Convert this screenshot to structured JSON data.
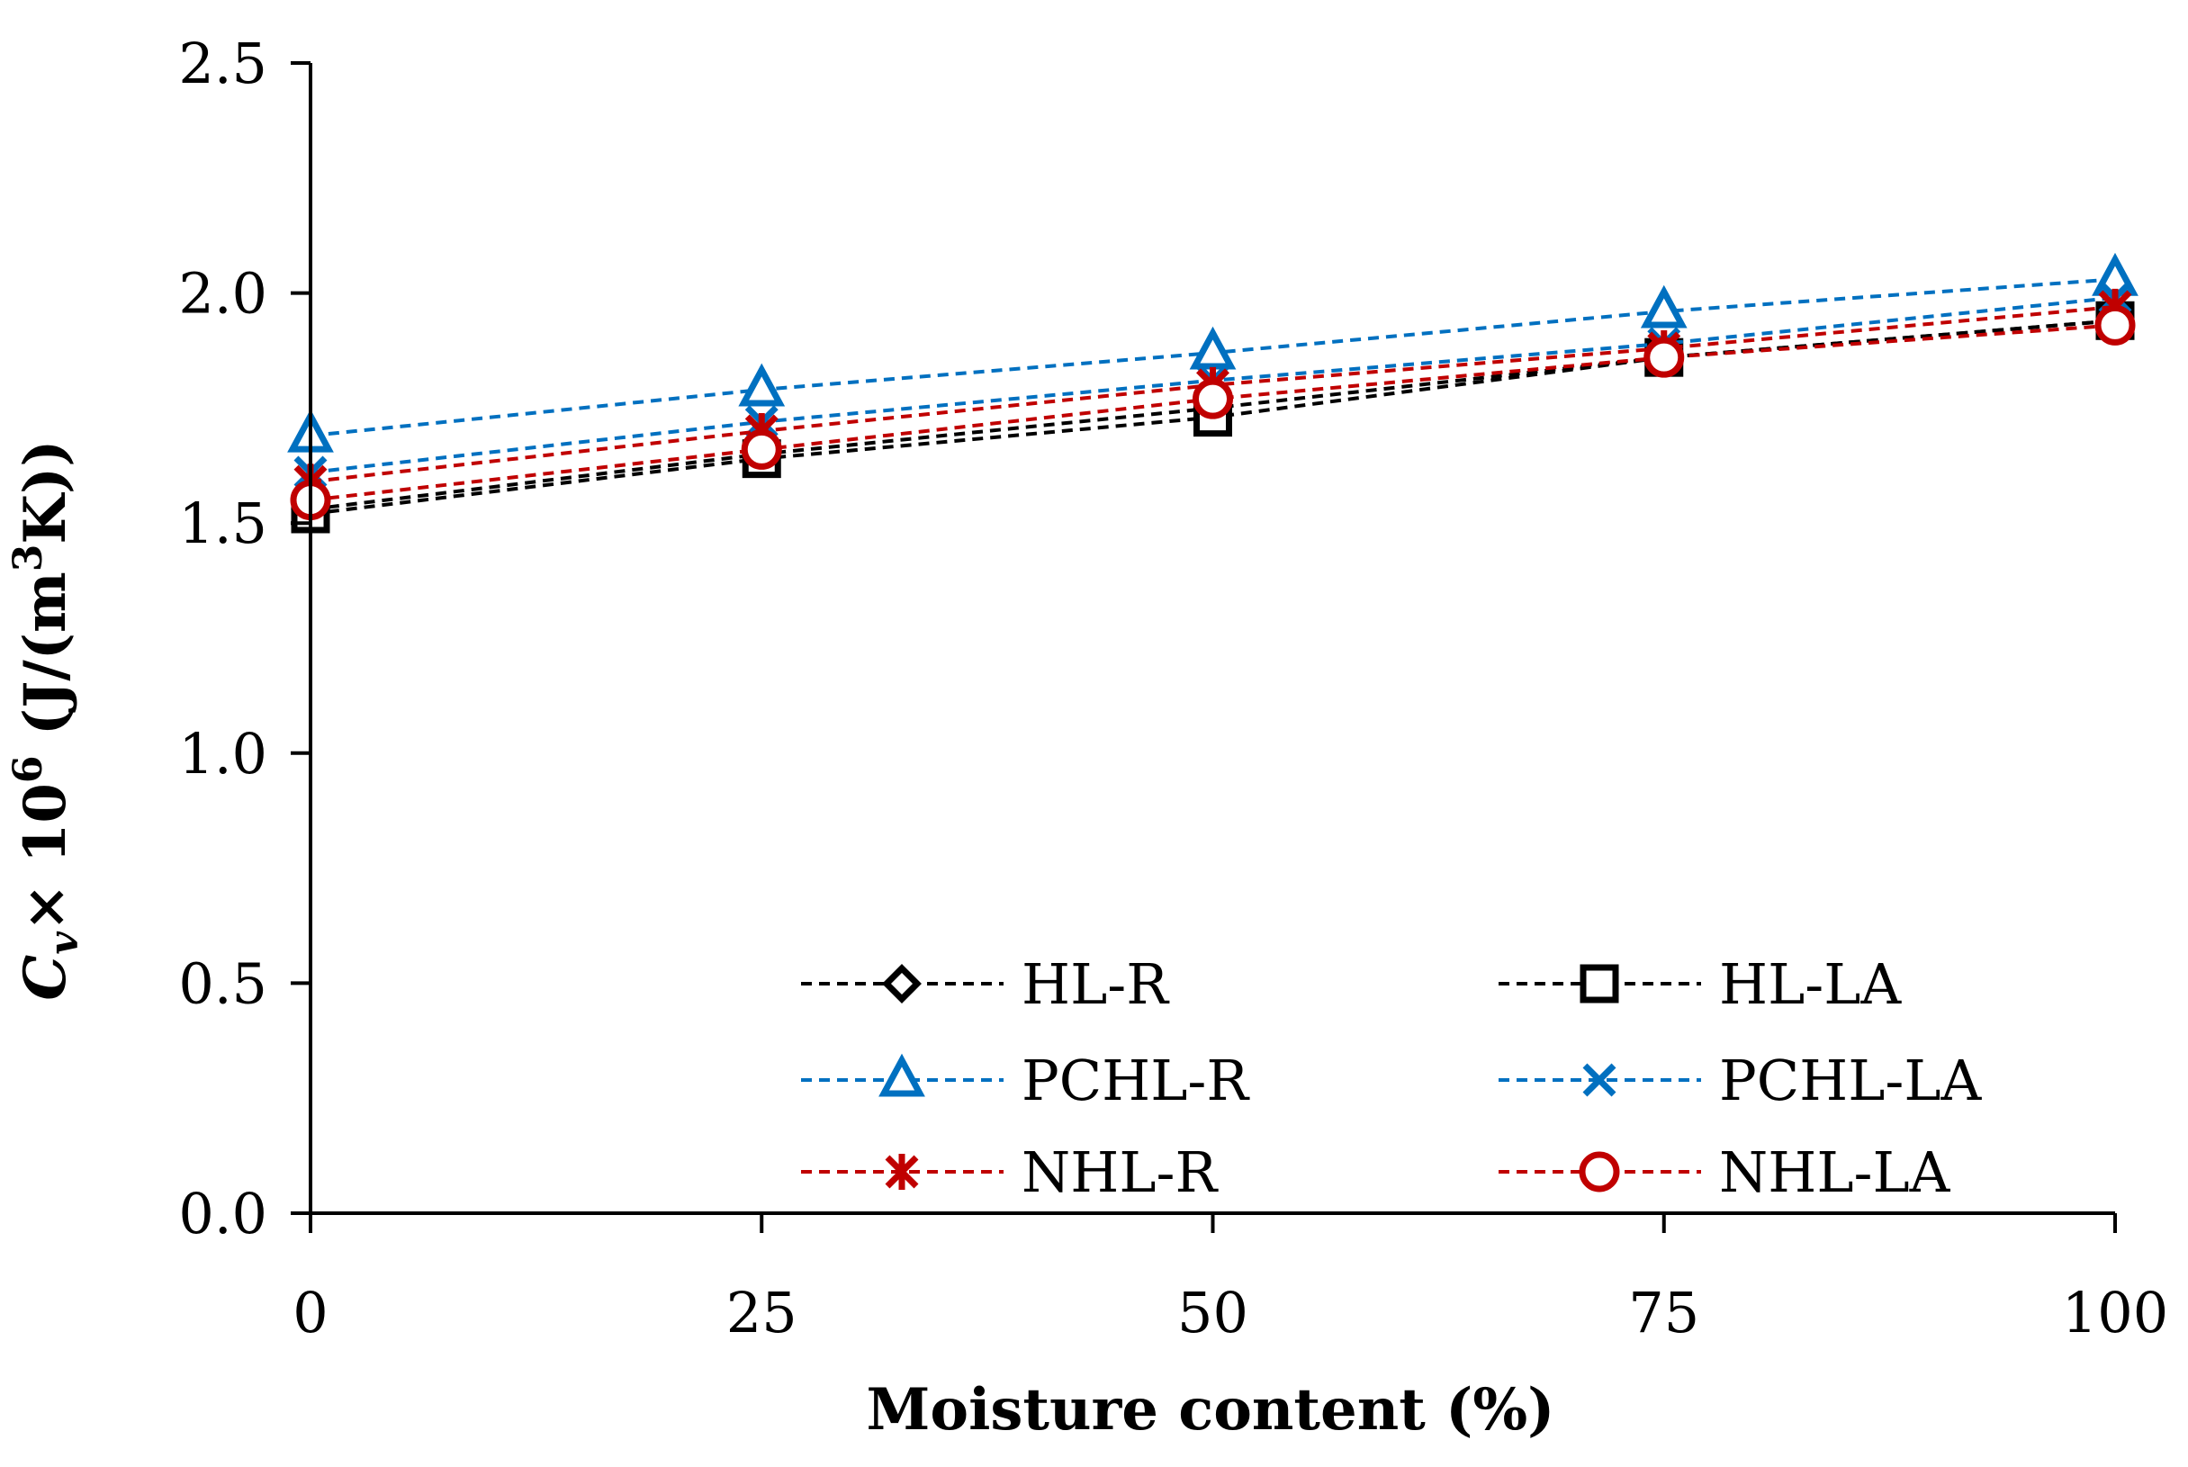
{
  "chart_data": {
    "type": "line",
    "title": "",
    "xlabel": "Moisture content (%)",
    "ylabel": {
      "symbol": "C",
      "subscript": "v",
      "times": "× 10",
      "exponent": "6",
      "unit_open": " (J/(m",
      "unit_exp": "3",
      "unit_close": "K))"
    },
    "x": [
      0,
      25,
      50,
      75,
      100
    ],
    "xlim": [
      0,
      100
    ],
    "ylim": [
      0,
      2.5
    ],
    "xticks": [
      "0",
      "25",
      "50",
      "75",
      "100"
    ],
    "yticks": [
      "0.0",
      "0.5",
      "1.0",
      "1.5",
      "2.0",
      "2.5"
    ],
    "grid": false,
    "legend_position": "bottom-right",
    "series": [
      {
        "name": "HL-R",
        "marker": "diamond",
        "color": "#000000",
        "values": [
          1.53,
          1.65,
          1.75,
          1.86,
          1.94
        ]
      },
      {
        "name": "HL-LA",
        "marker": "square",
        "color": "#000000",
        "values": [
          1.52,
          1.64,
          1.73,
          1.86,
          1.94
        ]
      },
      {
        "name": "PCHL-R",
        "marker": "triangle",
        "color": "#0070C0",
        "values": [
          1.69,
          1.79,
          1.87,
          1.96,
          2.03
        ]
      },
      {
        "name": "PCHL-LA",
        "marker": "x",
        "color": "#0070C0",
        "values": [
          1.61,
          1.72,
          1.81,
          1.89,
          1.99
        ]
      },
      {
        "name": "NHL-R",
        "marker": "asterisk",
        "color": "#C00000",
        "values": [
          1.59,
          1.7,
          1.8,
          1.88,
          1.97
        ]
      },
      {
        "name": "NHL-LA",
        "marker": "circle",
        "color": "#C00000",
        "values": [
          1.55,
          1.66,
          1.77,
          1.86,
          1.93
        ]
      }
    ]
  }
}
